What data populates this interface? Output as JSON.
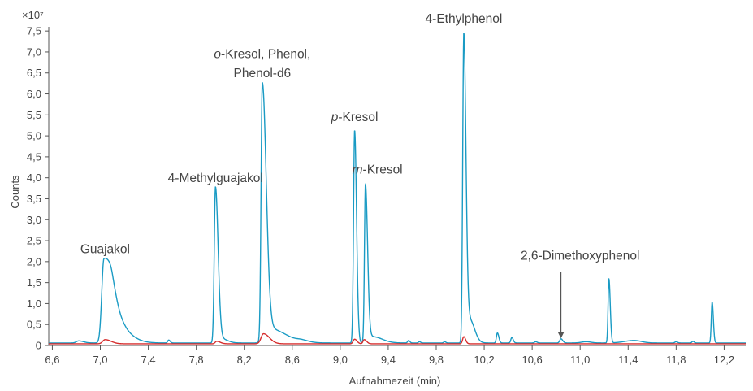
{
  "chart_data": {
    "type": "line",
    "title": "",
    "xlabel": "Aufnahmezeit (min)",
    "ylabel": "Counts",
    "y_multiplier": "×10⁷",
    "xlim": [
      6.57,
      12.38
    ],
    "ylim": [
      0,
      7.6
    ],
    "x_ticks": [
      6.6,
      7.0,
      7.4,
      7.8,
      8.2,
      8.6,
      9.0,
      9.4,
      9.8,
      10.2,
      10.6,
      11.0,
      11.4,
      11.8,
      12.2
    ],
    "x_tick_labels": [
      "6,6",
      "7,0",
      "7,4",
      "7,8",
      "8,2",
      "8,6",
      "9,0",
      "9,4",
      "9,8",
      "10,2",
      "10,6",
      "11,0",
      "11,4",
      "11,8",
      "12,2"
    ],
    "y_ticks": [
      0,
      0.5,
      1.0,
      1.5,
      2.0,
      2.5,
      3.0,
      3.5,
      4.0,
      4.5,
      5.0,
      5.5,
      6.0,
      6.5,
      7.0,
      7.5
    ],
    "y_tick_labels": [
      "0",
      "0,5",
      "1,0",
      "1,5",
      "2,0",
      "2,5",
      "3,0",
      "3,5",
      "4,0",
      "4,5",
      "5,0",
      "5,5",
      "6,0",
      "6,5",
      "7,0",
      "7,5"
    ],
    "grid": false,
    "baseline": {
      "blue": 0.06,
      "red": 0.04
    },
    "series": [
      {
        "color": "#1a9bc4",
        "peaks": [
          {
            "x": 6.82,
            "h": 0.05,
            "wl": 0.02,
            "wr": 0.04
          },
          {
            "x": 7.03,
            "h": 1.98,
            "wl": 0.018,
            "wr": 0.07
          },
          {
            "x": 7.1,
            "h": 0.45,
            "wl": 0.03,
            "wr": 0.1
          },
          {
            "x": 7.22,
            "h": 0.08,
            "wl": 0.05,
            "wr": 0.1
          },
          {
            "x": 7.57,
            "h": 0.07,
            "wl": 0.008,
            "wr": 0.012
          },
          {
            "x": 7.96,
            "h": 3.72,
            "wl": 0.01,
            "wr": 0.022
          },
          {
            "x": 8.01,
            "h": 0.1,
            "wl": 0.02,
            "wr": 0.05
          },
          {
            "x": 8.35,
            "h": 6.12,
            "wl": 0.01,
            "wr": 0.032
          },
          {
            "x": 8.4,
            "h": 0.35,
            "wl": 0.03,
            "wr": 0.14
          },
          {
            "x": 8.68,
            "h": 0.04,
            "wl": 0.04,
            "wr": 0.06
          },
          {
            "x": 9.12,
            "h": 5.08,
            "wl": 0.009,
            "wr": 0.016
          },
          {
            "x": 9.21,
            "h": 3.78,
            "wl": 0.008,
            "wr": 0.018
          },
          {
            "x": 9.27,
            "h": 0.15,
            "wl": 0.03,
            "wr": 0.08
          },
          {
            "x": 9.57,
            "h": 0.06,
            "wl": 0.008,
            "wr": 0.01
          },
          {
            "x": 9.66,
            "h": 0.03,
            "wl": 0.008,
            "wr": 0.01
          },
          {
            "x": 9.87,
            "h": 0.03,
            "wl": 0.008,
            "wr": 0.01
          },
          {
            "x": 10.03,
            "h": 7.38,
            "wl": 0.009,
            "wr": 0.018
          },
          {
            "x": 10.08,
            "h": 0.55,
            "wl": 0.02,
            "wr": 0.04
          },
          {
            "x": 10.31,
            "h": 0.24,
            "wl": 0.008,
            "wr": 0.012
          },
          {
            "x": 10.43,
            "h": 0.13,
            "wl": 0.008,
            "wr": 0.012
          },
          {
            "x": 10.63,
            "h": 0.03,
            "wl": 0.01,
            "wr": 0.012
          },
          {
            "x": 10.84,
            "h": 0.1,
            "wl": 0.01,
            "wr": 0.015
          },
          {
            "x": 11.05,
            "h": 0.03,
            "wl": 0.04,
            "wr": 0.04
          },
          {
            "x": 11.24,
            "h": 1.53,
            "wl": 0.007,
            "wr": 0.011
          },
          {
            "x": 11.45,
            "h": 0.06,
            "wl": 0.08,
            "wr": 0.06
          },
          {
            "x": 11.8,
            "h": 0.03,
            "wl": 0.01,
            "wr": 0.012
          },
          {
            "x": 11.94,
            "h": 0.04,
            "wl": 0.008,
            "wr": 0.01
          },
          {
            "x": 12.1,
            "h": 0.98,
            "wl": 0.007,
            "wr": 0.01
          }
        ]
      },
      {
        "color": "#d62d2d",
        "peaks": [
          {
            "x": 7.04,
            "h": 0.1,
            "wl": 0.02,
            "wr": 0.05
          },
          {
            "x": 7.97,
            "h": 0.06,
            "wl": 0.012,
            "wr": 0.03
          },
          {
            "x": 8.36,
            "h": 0.24,
            "wl": 0.02,
            "wr": 0.05
          },
          {
            "x": 9.12,
            "h": 0.11,
            "wl": 0.012,
            "wr": 0.02
          },
          {
            "x": 9.2,
            "h": 0.1,
            "wl": 0.01,
            "wr": 0.02
          },
          {
            "x": 10.03,
            "h": 0.17,
            "wl": 0.01,
            "wr": 0.015
          }
        ]
      }
    ],
    "annotations": [
      {
        "parts": [
          {
            "text": "Guajakol",
            "italic": false
          }
        ],
        "x": 7.04,
        "y": 2.2
      },
      {
        "parts": [
          {
            "text": "4-Methylguajakol",
            "italic": false
          }
        ],
        "x": 7.96,
        "y": 3.9
      },
      {
        "parts": [
          {
            "text": "o",
            "italic": true
          },
          {
            "text": "-Kresol, Phenol,",
            "italic": false
          }
        ],
        "x": 8.35,
        "y": 6.85
      },
      {
        "parts": [
          {
            "text": "Phenol-d6",
            "italic": false
          }
        ],
        "x": 8.35,
        "y": 6.4
      },
      {
        "parts": [
          {
            "text": "p",
            "italic": true
          },
          {
            "text": "-Kresol",
            "italic": false
          }
        ],
        "x": 9.12,
        "y": 5.35
      },
      {
        "parts": [
          {
            "text": "m",
            "italic": true
          },
          {
            "text": "-Kresol",
            "italic": false
          }
        ],
        "x": 9.31,
        "y": 4.1
      },
      {
        "parts": [
          {
            "text": "4-Ethylphenol",
            "italic": false
          }
        ],
        "x": 10.03,
        "y": 7.7
      },
      {
        "parts": [
          {
            "text": "2,6-Dimethoxyphenol",
            "italic": false
          }
        ],
        "x": 11.0,
        "y": 2.05
      }
    ],
    "arrow": {
      "x": 10.84,
      "y_from": 1.75,
      "y_to": 0.17
    }
  }
}
